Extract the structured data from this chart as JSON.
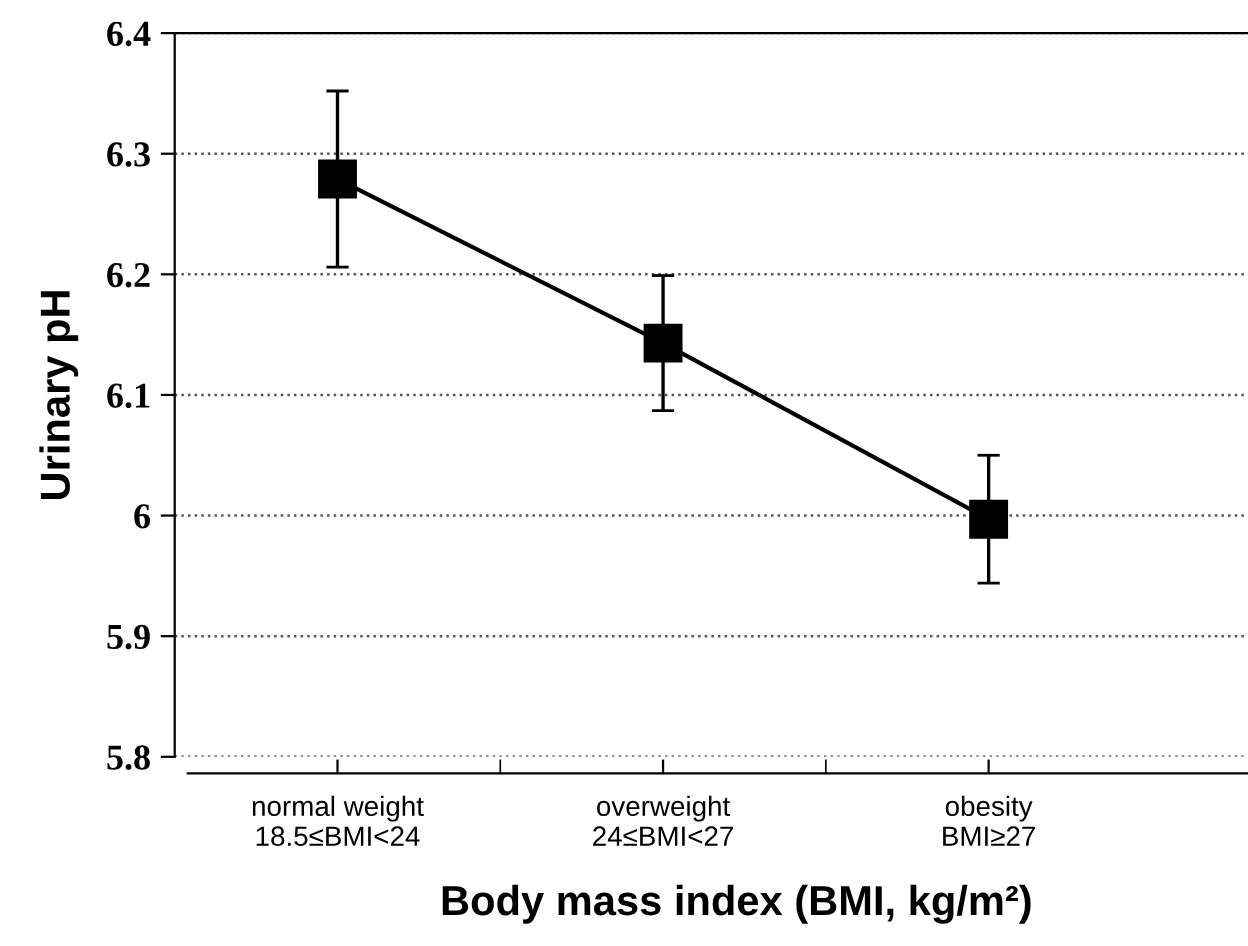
{
  "chart_data": {
    "type": "line",
    "xlabel": "Body mass index (BMI, kg/m²)",
    "ylabel": "Urinary pH",
    "categories": [
      "normal weight\n18.5≤BMI<24",
      "overweight\n24≤BMI<27",
      "obesity\nBMI≥27"
    ],
    "series": [
      {
        "color": "#000000",
        "values": [
          6.279,
          6.143,
          5.997
        ],
        "errors": [
          0.073,
          0.056,
          0.053
        ]
      }
    ],
    "ylim": [
      5.8,
      6.4
    ],
    "yticks": [
      {
        "value": 5.8,
        "label": "5.8"
      },
      {
        "value": 5.9,
        "label": "5.9"
      },
      {
        "value": 6.0,
        "label": "6"
      },
      {
        "value": 6.1,
        "label": "6.1"
      },
      {
        "value": 6.2,
        "label": "6.2"
      },
      {
        "value": 6.3,
        "label": "6.3"
      },
      {
        "value": 6.4,
        "label": "6.4"
      }
    ],
    "grid": "y",
    "marker": "square",
    "line_style": "solid",
    "legend": false
  }
}
